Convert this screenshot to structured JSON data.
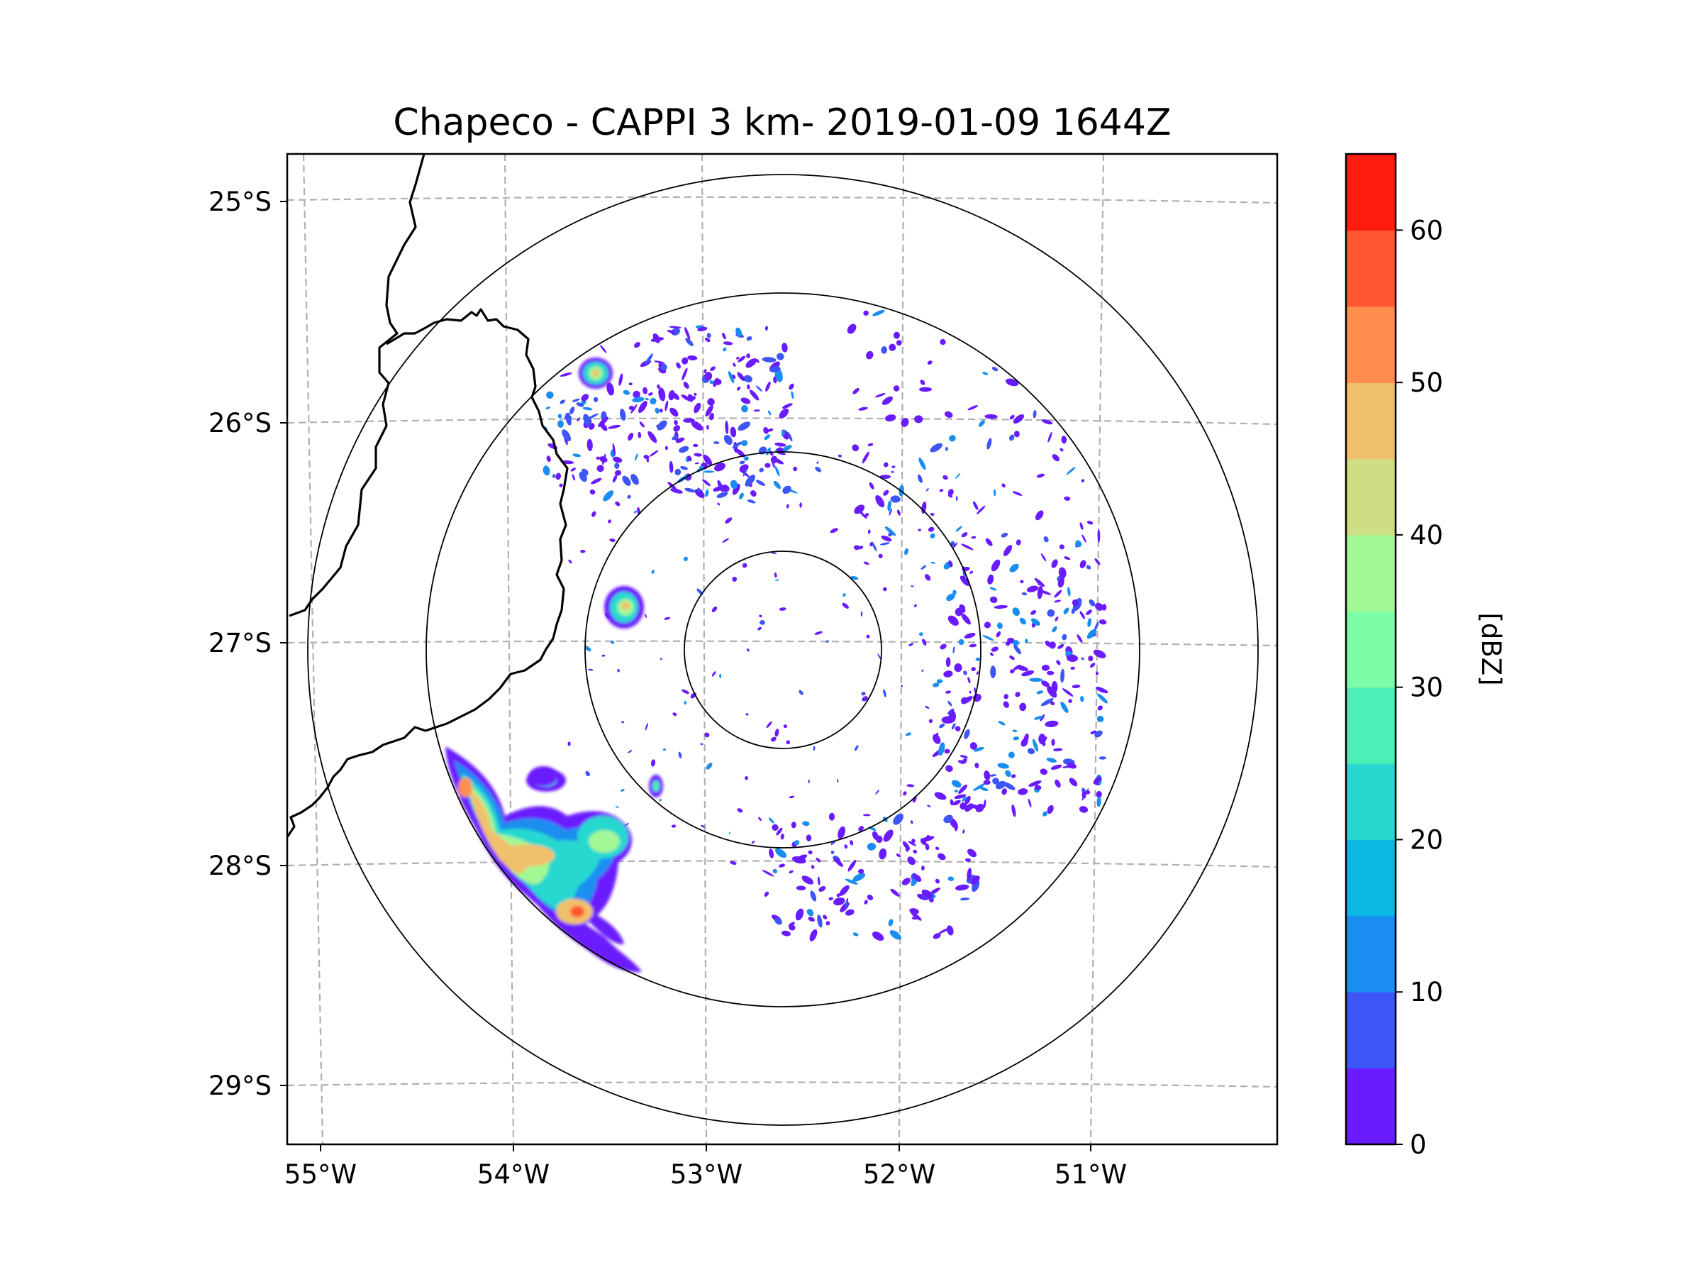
{
  "title": "Chapeco - CAPPI 3 km- 2019-01-09 1644Z",
  "map": {
    "lat_labels": [
      "25°S",
      "26°S",
      "27°S",
      "28°S",
      "29°S"
    ],
    "lon_labels": [
      "55°W",
      "54°W",
      "53°W",
      "52°W",
      "51°W"
    ],
    "radar_center": {
      "lon": -52.6,
      "lat": -27.05
    },
    "range_rings_deg": [
      0.45,
      0.9,
      1.65,
      2.4
    ],
    "border_color": "#000000",
    "grid_color": "#b0b0b0"
  },
  "colorbar": {
    "label": "[dBZ]",
    "min": 0,
    "max": 65,
    "step": 5,
    "tick_labels": [
      "0",
      "10",
      "20",
      "30",
      "40",
      "50",
      "60"
    ],
    "tick_values": [
      0,
      10,
      20,
      30,
      40,
      50,
      60
    ],
    "colors": [
      "#6a1bff",
      "#3e55f7",
      "#1a8ef0",
      "#0bb8e4",
      "#28d8d0",
      "#4cefb5",
      "#7dfda6",
      "#a2f894",
      "#cede82",
      "#f1c06c",
      "#ff8e4f",
      "#ff5731",
      "#ff1b10"
    ]
  },
  "chart_data": {
    "type": "heatmap",
    "title": "Chapeco - CAPPI 3 km- 2019-01-09 1644Z",
    "variable": "reflectivity",
    "units": "dBZ",
    "x_range_lon": [
      -55.1,
      -50.1
    ],
    "y_range_lat": [
      -29.3,
      -24.8
    ],
    "value_range": [
      0,
      65
    ],
    "echoes": [
      {
        "lon": -54.1,
        "lat": -27.95,
        "dbz": 45
      },
      {
        "lon": -53.75,
        "lat": -28.22,
        "dbz": 50
      },
      {
        "lon": -53.6,
        "lat": -27.95,
        "dbz": 40
      },
      {
        "lon": -53.4,
        "lat": -26.82,
        "dbz": 35
      },
      {
        "lon": -53.65,
        "lat": -25.8,
        "dbz": 45
      },
      {
        "lon": -53.25,
        "lat": -27.65,
        "dbz": 20
      },
      {
        "lon": -52.9,
        "lat": -26.1,
        "dbz": 10
      },
      {
        "lon": -51.3,
        "lat": -27.4,
        "dbz": 5
      },
      {
        "lon": -51.6,
        "lat": -26.7,
        "dbz": 5
      },
      {
        "lon": -52.0,
        "lat": -28.1,
        "dbz": 5
      }
    ]
  }
}
